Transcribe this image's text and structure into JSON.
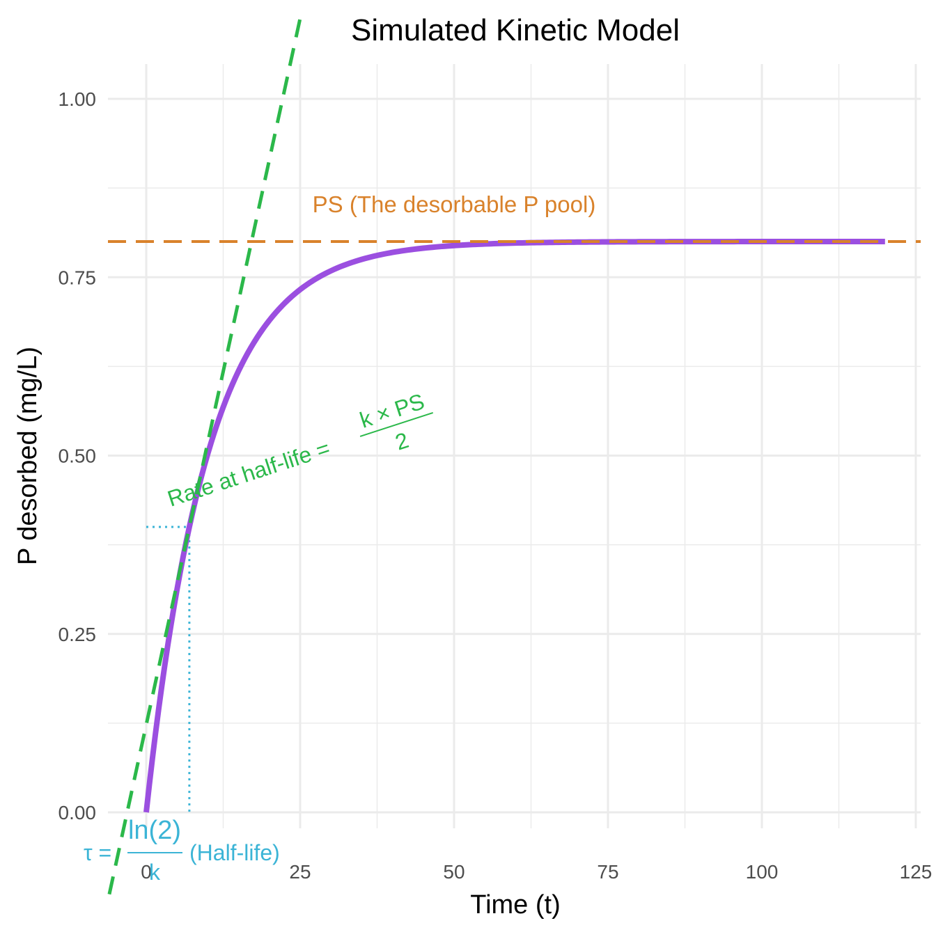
{
  "chart_data": {
    "type": "line",
    "title": "Simulated Kinetic Model",
    "xlabel": "Time (t)",
    "ylabel": "P desorbed (mg/L)",
    "xlim": [
      -12,
      126
    ],
    "ylim": [
      -0.05,
      1.05
    ],
    "x_ticks": [
      0,
      25,
      50,
      75,
      100,
      125
    ],
    "x_tick_labels": [
      "0",
      "25",
      "50",
      "75",
      "100",
      "125"
    ],
    "y_ticks": [
      0,
      0.25,
      0.5,
      0.75,
      1.0
    ],
    "y_tick_labels": [
      "0.00",
      "0.25",
      "0.50",
      "0.75",
      "1.00"
    ],
    "grid": true,
    "model": {
      "PS": 0.8,
      "half_life": 7,
      "t_range": [
        0,
        120
      ]
    },
    "series": [
      {
        "name": "P desorbed curve",
        "formula": "PS*(1-exp(-k*t))",
        "color": "#9B4FE0"
      },
      {
        "name": "Tangent at half-life",
        "slope": 0.0396,
        "through": [
          7,
          0.4
        ],
        "color": "#2BB84A",
        "style": "dashed"
      },
      {
        "name": "PS level",
        "y": 0.8,
        "color": "#D9822B",
        "style": "dashed"
      },
      {
        "name": "Half-life guide",
        "point": [
          7,
          0.4
        ],
        "color": "#3BB4D6",
        "style": "dotted"
      }
    ],
    "annotations": {
      "ps_label": "PS (The desorbable P pool)",
      "rate_prefix": "Rate at half-life =",
      "rate_numerator": "k × PS",
      "rate_denominator": "2",
      "tau_prefix": "τ =",
      "tau_numerator": "ln(2)",
      "tau_denominator": "k",
      "tau_suffix": "(Half-life)"
    },
    "colors": {
      "curve": "#9B4FE0",
      "tangent": "#2BB84A",
      "ps": "#D9822B",
      "halflife": "#3BB4D6",
      "grid": "#EBEBEB"
    }
  }
}
